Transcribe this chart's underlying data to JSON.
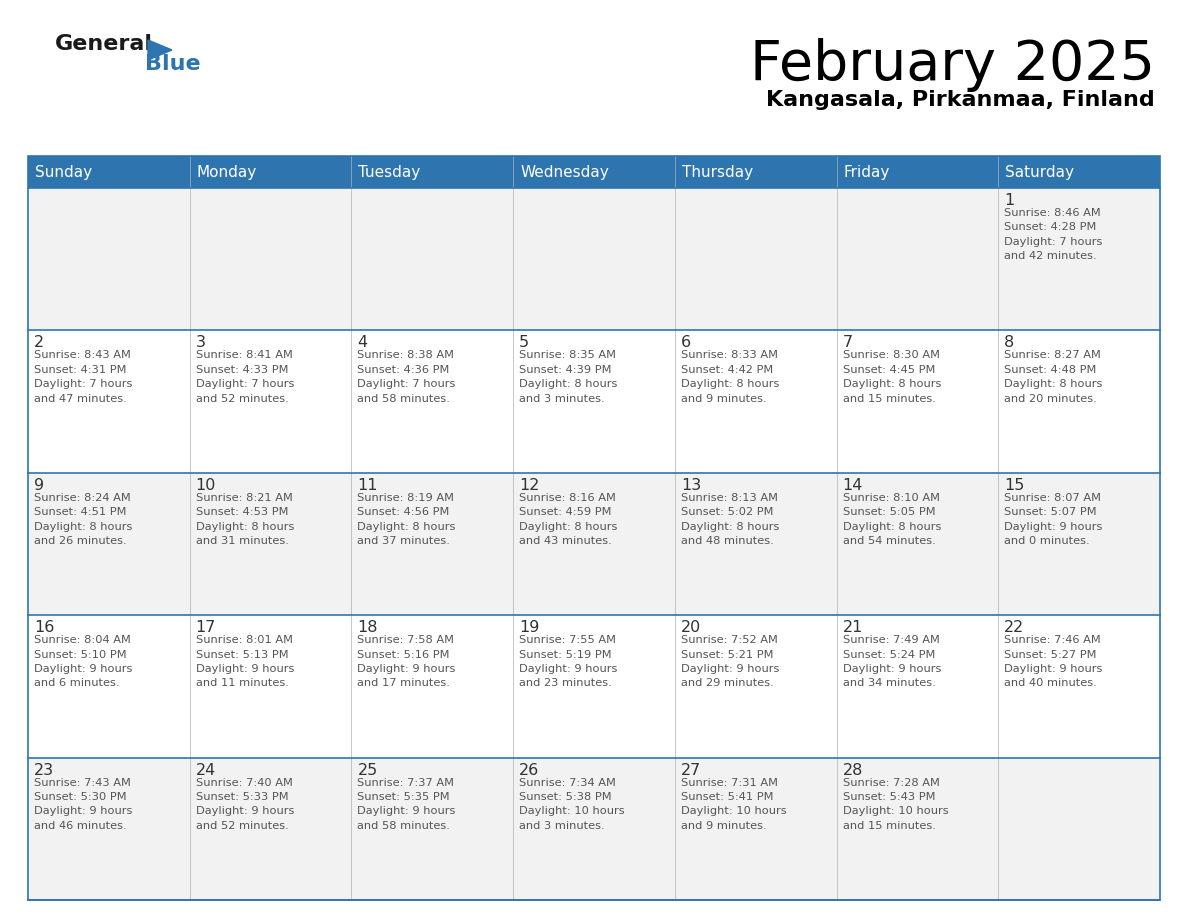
{
  "title": "February 2025",
  "subtitle": "Kangasala, Pirkanmaa, Finland",
  "header_bg_color": "#2e75b0",
  "header_text_color": "#ffffff",
  "border_color": "#2e75b0",
  "row_bg_odd": "#f2f2f2",
  "row_bg_even": "#ffffff",
  "day_headers": [
    "Sunday",
    "Monday",
    "Tuesday",
    "Wednesday",
    "Thursday",
    "Friday",
    "Saturday"
  ],
  "title_color": "#000000",
  "subtitle_color": "#000000",
  "day_num_color": "#333333",
  "info_color": "#555555",
  "calendar": [
    [
      {
        "day": "",
        "info": ""
      },
      {
        "day": "",
        "info": ""
      },
      {
        "day": "",
        "info": ""
      },
      {
        "day": "",
        "info": ""
      },
      {
        "day": "",
        "info": ""
      },
      {
        "day": "",
        "info": ""
      },
      {
        "day": "1",
        "info": "Sunrise: 8:46 AM\nSunset: 4:28 PM\nDaylight: 7 hours\nand 42 minutes."
      }
    ],
    [
      {
        "day": "2",
        "info": "Sunrise: 8:43 AM\nSunset: 4:31 PM\nDaylight: 7 hours\nand 47 minutes."
      },
      {
        "day": "3",
        "info": "Sunrise: 8:41 AM\nSunset: 4:33 PM\nDaylight: 7 hours\nand 52 minutes."
      },
      {
        "day": "4",
        "info": "Sunrise: 8:38 AM\nSunset: 4:36 PM\nDaylight: 7 hours\nand 58 minutes."
      },
      {
        "day": "5",
        "info": "Sunrise: 8:35 AM\nSunset: 4:39 PM\nDaylight: 8 hours\nand 3 minutes."
      },
      {
        "day": "6",
        "info": "Sunrise: 8:33 AM\nSunset: 4:42 PM\nDaylight: 8 hours\nand 9 minutes."
      },
      {
        "day": "7",
        "info": "Sunrise: 8:30 AM\nSunset: 4:45 PM\nDaylight: 8 hours\nand 15 minutes."
      },
      {
        "day": "8",
        "info": "Sunrise: 8:27 AM\nSunset: 4:48 PM\nDaylight: 8 hours\nand 20 minutes."
      }
    ],
    [
      {
        "day": "9",
        "info": "Sunrise: 8:24 AM\nSunset: 4:51 PM\nDaylight: 8 hours\nand 26 minutes."
      },
      {
        "day": "10",
        "info": "Sunrise: 8:21 AM\nSunset: 4:53 PM\nDaylight: 8 hours\nand 31 minutes."
      },
      {
        "day": "11",
        "info": "Sunrise: 8:19 AM\nSunset: 4:56 PM\nDaylight: 8 hours\nand 37 minutes."
      },
      {
        "day": "12",
        "info": "Sunrise: 8:16 AM\nSunset: 4:59 PM\nDaylight: 8 hours\nand 43 minutes."
      },
      {
        "day": "13",
        "info": "Sunrise: 8:13 AM\nSunset: 5:02 PM\nDaylight: 8 hours\nand 48 minutes."
      },
      {
        "day": "14",
        "info": "Sunrise: 8:10 AM\nSunset: 5:05 PM\nDaylight: 8 hours\nand 54 minutes."
      },
      {
        "day": "15",
        "info": "Sunrise: 8:07 AM\nSunset: 5:07 PM\nDaylight: 9 hours\nand 0 minutes."
      }
    ],
    [
      {
        "day": "16",
        "info": "Sunrise: 8:04 AM\nSunset: 5:10 PM\nDaylight: 9 hours\nand 6 minutes."
      },
      {
        "day": "17",
        "info": "Sunrise: 8:01 AM\nSunset: 5:13 PM\nDaylight: 9 hours\nand 11 minutes."
      },
      {
        "day": "18",
        "info": "Sunrise: 7:58 AM\nSunset: 5:16 PM\nDaylight: 9 hours\nand 17 minutes."
      },
      {
        "day": "19",
        "info": "Sunrise: 7:55 AM\nSunset: 5:19 PM\nDaylight: 9 hours\nand 23 minutes."
      },
      {
        "day": "20",
        "info": "Sunrise: 7:52 AM\nSunset: 5:21 PM\nDaylight: 9 hours\nand 29 minutes."
      },
      {
        "day": "21",
        "info": "Sunrise: 7:49 AM\nSunset: 5:24 PM\nDaylight: 9 hours\nand 34 minutes."
      },
      {
        "day": "22",
        "info": "Sunrise: 7:46 AM\nSunset: 5:27 PM\nDaylight: 9 hours\nand 40 minutes."
      }
    ],
    [
      {
        "day": "23",
        "info": "Sunrise: 7:43 AM\nSunset: 5:30 PM\nDaylight: 9 hours\nand 46 minutes."
      },
      {
        "day": "24",
        "info": "Sunrise: 7:40 AM\nSunset: 5:33 PM\nDaylight: 9 hours\nand 52 minutes."
      },
      {
        "day": "25",
        "info": "Sunrise: 7:37 AM\nSunset: 5:35 PM\nDaylight: 9 hours\nand 58 minutes."
      },
      {
        "day": "26",
        "info": "Sunrise: 7:34 AM\nSunset: 5:38 PM\nDaylight: 10 hours\nand 3 minutes."
      },
      {
        "day": "27",
        "info": "Sunrise: 7:31 AM\nSunset: 5:41 PM\nDaylight: 10 hours\nand 9 minutes."
      },
      {
        "day": "28",
        "info": "Sunrise: 7:28 AM\nSunset: 5:43 PM\nDaylight: 10 hours\nand 15 minutes."
      },
      {
        "day": "",
        "info": ""
      }
    ]
  ],
  "logo_color_general": "#1a1a1a",
  "logo_color_blue": "#2e75b0",
  "logo_triangle_color": "#2e75b0"
}
